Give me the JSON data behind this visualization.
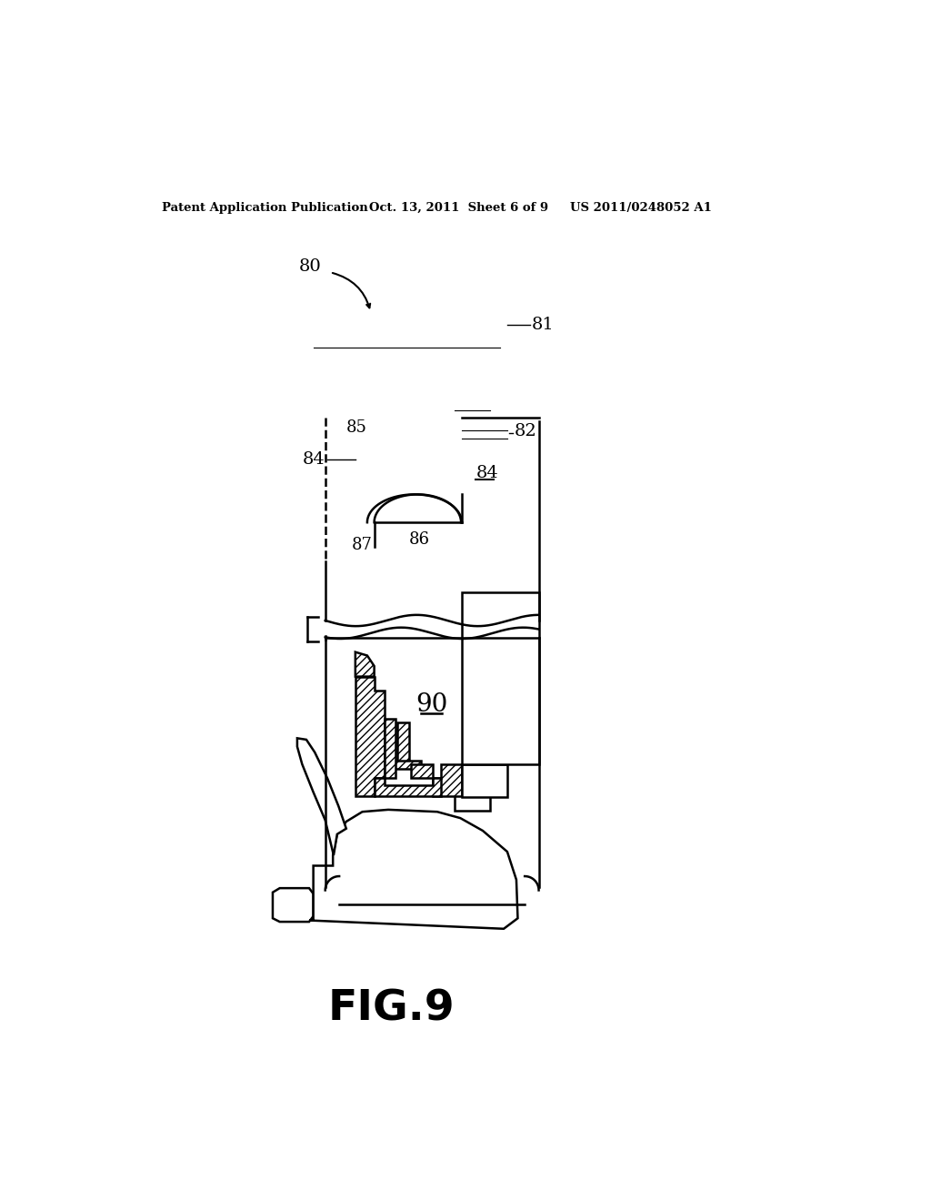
{
  "background_color": "#ffffff",
  "header_left": "Patent Application Publication",
  "header_mid": "Oct. 13, 2011  Sheet 6 of 9",
  "header_right": "US 2011/0248052 A1",
  "figure_label": "FIG.9",
  "line_color": "#000000",
  "lw": 1.8,
  "lw_thick": 2.5,
  "lw_thin": 0.8
}
